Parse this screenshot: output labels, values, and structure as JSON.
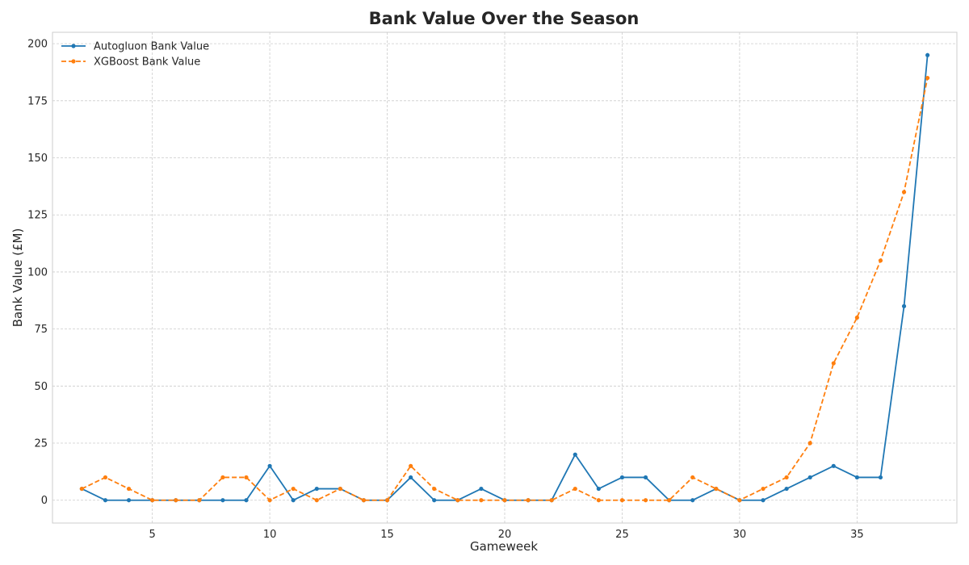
{
  "chart_data": {
    "type": "line",
    "title": "Bank Value Over the Season",
    "xlabel": "Gameweek",
    "ylabel": "Bank Value (£M)",
    "xlim": [
      0.75,
      39.25
    ],
    "ylim": [
      -10,
      205
    ],
    "xticks": [
      5,
      10,
      15,
      20,
      25,
      30,
      35
    ],
    "yticks": [
      0,
      25,
      50,
      75,
      100,
      125,
      150,
      175,
      200
    ],
    "grid": true,
    "legend_position": "upper-left",
    "x": [
      2,
      3,
      4,
      5,
      6,
      7,
      8,
      9,
      10,
      11,
      12,
      13,
      14,
      15,
      16,
      17,
      18,
      19,
      20,
      21,
      22,
      23,
      24,
      25,
      26,
      27,
      28,
      29,
      30,
      31,
      32,
      33,
      34,
      35,
      36,
      37,
      38
    ],
    "series": [
      {
        "name": "Autogluon Bank Value",
        "color": "#1f77b4",
        "linestyle": "solid",
        "marker": "circle",
        "values": [
          5,
          0,
          0,
          0,
          0,
          0,
          0,
          0,
          15,
          0,
          5,
          5,
          0,
          0,
          10,
          0,
          0,
          5,
          0,
          0,
          0,
          20,
          5,
          10,
          10,
          0,
          0,
          5,
          0,
          0,
          5,
          10,
          15,
          10,
          10,
          85,
          195
        ]
      },
      {
        "name": "XGBoost Bank Value",
        "color": "#ff7f0e",
        "linestyle": "dashed",
        "marker": "circle",
        "values": [
          5,
          10,
          5,
          0,
          0,
          0,
          10,
          10,
          0,
          5,
          0,
          5,
          0,
          0,
          15,
          5,
          0,
          0,
          0,
          0,
          0,
          5,
          0,
          0,
          0,
          0,
          10,
          5,
          0,
          5,
          10,
          25,
          60,
          80,
          105,
          135,
          185
        ]
      }
    ]
  }
}
